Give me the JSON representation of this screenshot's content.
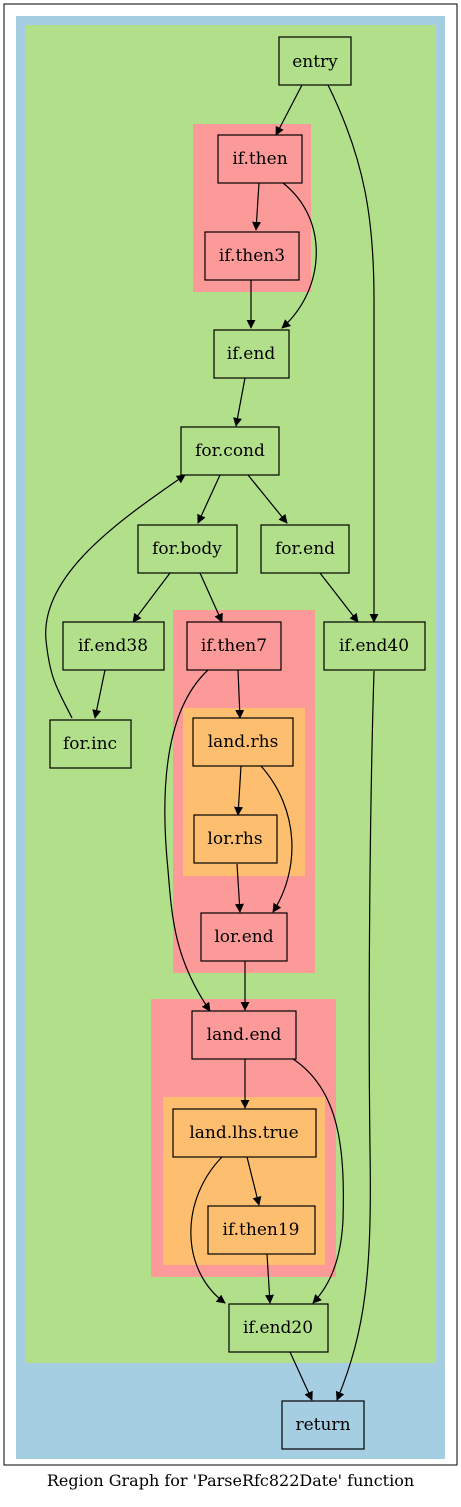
{
  "caption": "Region Graph for 'ParseRfc822Date' function",
  "colors": {
    "outer_region": "#a6cee3",
    "function_region": "#b2df8a",
    "nested_region": "#fb9a99",
    "inner_region": "#fdbf6f"
  },
  "nodes": {
    "entry": "entry",
    "if_then": "if.then",
    "if_then3": "if.then3",
    "if_end": "if.end",
    "for_cond": "for.cond",
    "for_body": "for.body",
    "for_end": "for.end",
    "if_end38": "if.end38",
    "for_inc": "for.inc",
    "if_then7": "if.then7",
    "land_rhs": "land.rhs",
    "lor_rhs": "lor.rhs",
    "lor_end": "lor.end",
    "if_end40": "if.end40",
    "land_end": "land.end",
    "land_lhs_true": "land.lhs.true",
    "if_then19": "if.then19",
    "if_end20": "if.end20",
    "return": "return"
  },
  "edges": [
    [
      "entry",
      "if.then"
    ],
    [
      "entry",
      "if.end40"
    ],
    [
      "if.then",
      "if.then3"
    ],
    [
      "if.then",
      "if.end"
    ],
    [
      "if.then3",
      "if.end"
    ],
    [
      "if.end",
      "for.cond"
    ],
    [
      "for.cond",
      "for.body"
    ],
    [
      "for.cond",
      "for.end"
    ],
    [
      "for.body",
      "if.end38"
    ],
    [
      "for.body",
      "if.then7"
    ],
    [
      "for.end",
      "if.end40"
    ],
    [
      "if.end38",
      "for.inc"
    ],
    [
      "for.inc",
      "for.cond"
    ],
    [
      "if.then7",
      "land.rhs"
    ],
    [
      "if.then7",
      "land.end"
    ],
    [
      "land.rhs",
      "lor.rhs"
    ],
    [
      "land.rhs",
      "lor.end"
    ],
    [
      "lor.rhs",
      "lor.end"
    ],
    [
      "lor.end",
      "land.end"
    ],
    [
      "land.end",
      "land.lhs.true"
    ],
    [
      "land.end",
      "if.end20"
    ],
    [
      "land.lhs.true",
      "if.then19"
    ],
    [
      "land.lhs.true",
      "if.end20"
    ],
    [
      "if.then19",
      "if.end20"
    ],
    [
      "if.end20",
      "return"
    ],
    [
      "if.end40",
      "return"
    ]
  ]
}
